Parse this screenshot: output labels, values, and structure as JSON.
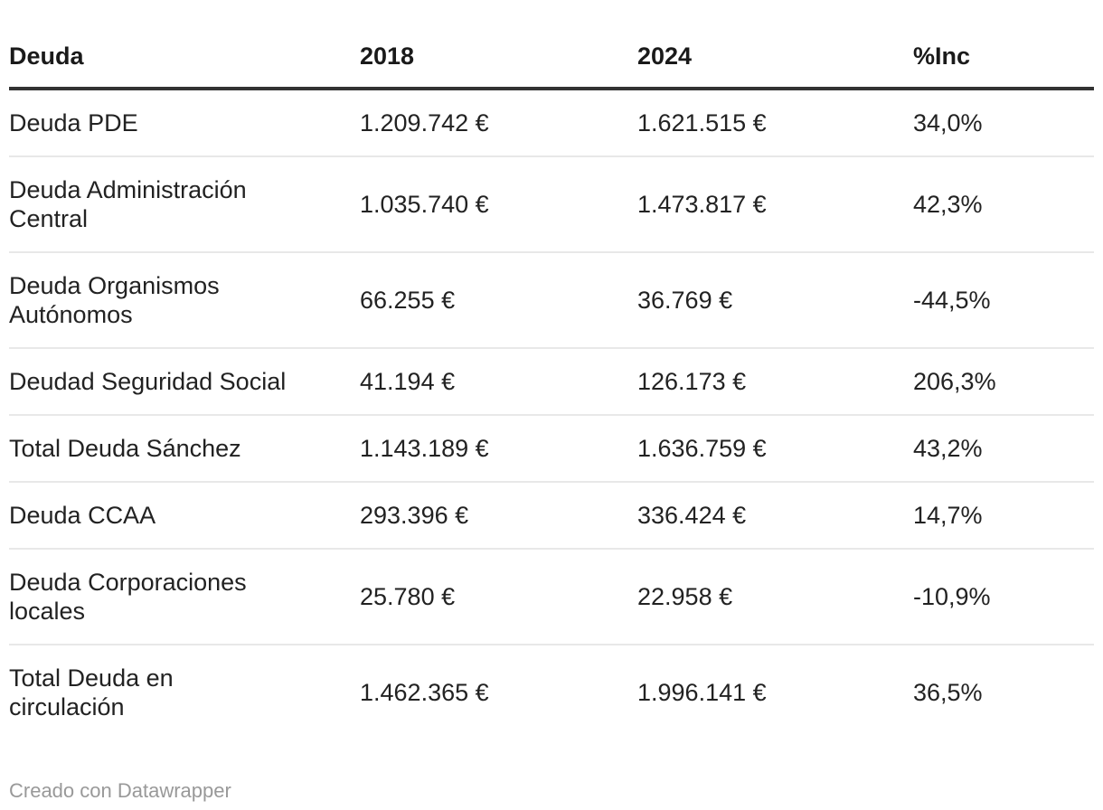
{
  "table": {
    "header": [
      "Deuda",
      "2018",
      "2024",
      "%Inc"
    ],
    "rows": [
      {
        "cells": [
          "Deuda PDE",
          "1.209.742 €",
          "1.621.515 €",
          "34,0%"
        ]
      },
      {
        "cells": [
          "Deuda Administración\nCentral",
          "1.035.740 €",
          "1.473.817 €",
          "42,3%"
        ]
      },
      {
        "cells": [
          "Deuda Organismos\nAutónomos",
          "66.255 €",
          "36.769 €",
          "-44,5%"
        ]
      },
      {
        "cells": [
          "Deudad Seguridad Social",
          "41.194 €",
          "126.173 €",
          "206,3%"
        ]
      },
      {
        "cells": [
          "Total Deuda Sánchez",
          "1.143.189 €",
          "1.636.759 €",
          "43,2%"
        ]
      },
      {
        "cells": [
          "Deuda CCAA",
          "293.396 €",
          "336.424 €",
          "14,7%"
        ]
      },
      {
        "cells": [
          "Deuda Corporaciones\nlocales",
          "25.780 €",
          "22.958 €",
          "-10,9%"
        ]
      },
      {
        "cells": [
          "Total Deuda en\ncirculación",
          "1.462.365 €",
          "1.996.141 €",
          "36,5%"
        ]
      }
    ]
  },
  "footer": {
    "attribution": "Creado con Datawrapper"
  },
  "colors": {
    "header_rule": "#333333",
    "row_rule": "#e8e8e8",
    "header_text": "#1a1a1a",
    "body_text": "#222222",
    "footer_text": "#999999"
  },
  "chart_data": {
    "type": "table",
    "title": "",
    "columns": [
      "Deuda",
      "2018",
      "2024",
      "%Inc"
    ],
    "unit": "€",
    "rows": [
      {
        "label": "Deuda PDE",
        "y2018": 1209742,
        "y2024": 1621515,
        "inc_pct": 34.0
      },
      {
        "label": "Deuda Administración Central",
        "y2018": 1035740,
        "y2024": 1473817,
        "inc_pct": 42.3
      },
      {
        "label": "Deuda Organismos Autónomos",
        "y2018": 66255,
        "y2024": 36769,
        "inc_pct": -44.5
      },
      {
        "label": "Deudad Seguridad Social",
        "y2018": 41194,
        "y2024": 126173,
        "inc_pct": 206.3
      },
      {
        "label": "Total Deuda Sánchez",
        "y2018": 1143189,
        "y2024": 1636759,
        "inc_pct": 43.2
      },
      {
        "label": "Deuda CCAA",
        "y2018": 293396,
        "y2024": 336424,
        "inc_pct": 14.7
      },
      {
        "label": "Deuda Corporaciones locales",
        "y2018": 25780,
        "y2024": 22958,
        "inc_pct": -10.9
      },
      {
        "label": "Total Deuda en circulación",
        "y2018": 1462365,
        "y2024": 1996141,
        "inc_pct": 36.5
      }
    ],
    "layout_hints": {
      "columns_left_aligned": true,
      "grid": "horizontal-rules-only",
      "legend": "none"
    },
    "attribution": "Creado con Datawrapper"
  }
}
